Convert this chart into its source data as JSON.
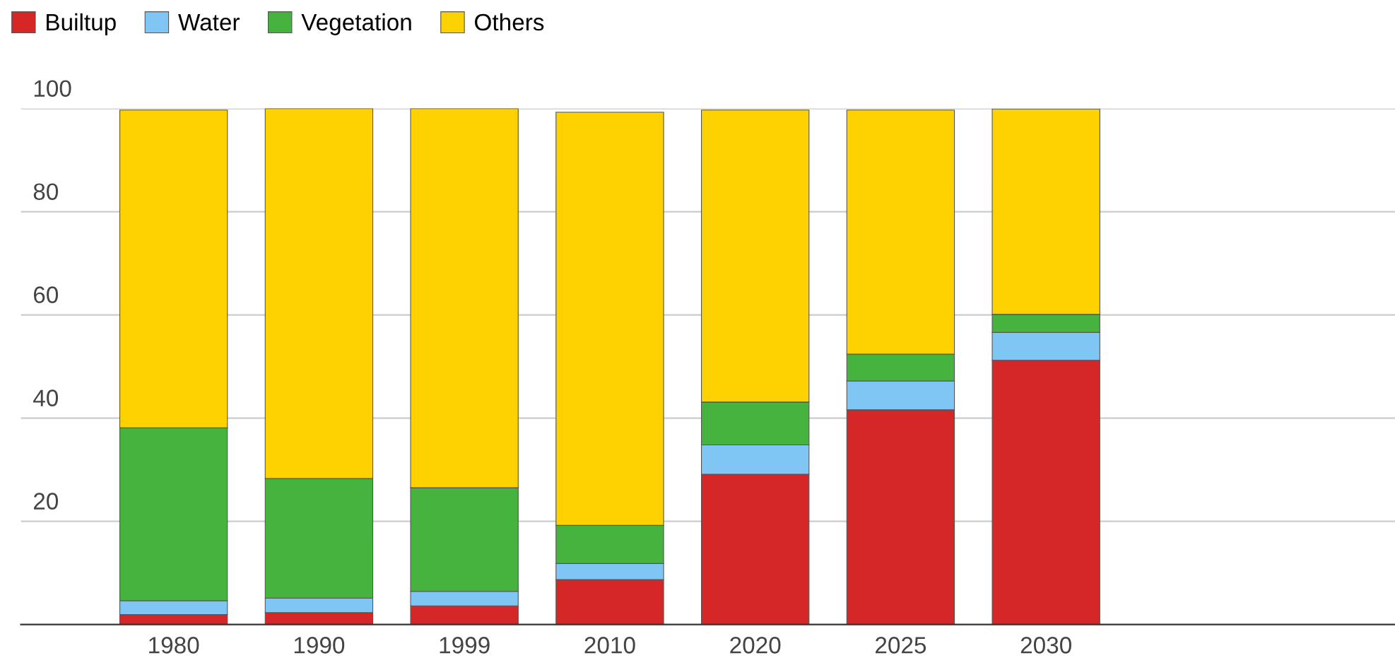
{
  "chart_data": {
    "type": "bar",
    "stacked": true,
    "categories": [
      "1980",
      "1990",
      "1999",
      "2010",
      "2020",
      "2025",
      "2030"
    ],
    "series": [
      {
        "name": "Builtup",
        "color": "#d62728",
        "values": [
          1.9,
          2.3,
          3.6,
          8.7,
          29.1,
          41.6,
          51.2
        ]
      },
      {
        "name": "Water",
        "color": "#80c6f5",
        "values": [
          2.7,
          2.8,
          2.8,
          3.1,
          5.7,
          5.6,
          5.4
        ]
      },
      {
        "name": "Vegetation",
        "color": "#46b33e",
        "values": [
          33.5,
          23.2,
          20.1,
          7.4,
          8.3,
          5.2,
          3.5
        ]
      },
      {
        "name": "Others",
        "color": "#fdd200",
        "values": [
          61.6,
          71.7,
          73.5,
          80.1,
          56.6,
          47.3,
          39.8
        ]
      }
    ],
    "ylim": [
      0,
      100
    ],
    "yticks": [
      20,
      40,
      60,
      80,
      100
    ],
    "grid": "y",
    "legend": "top left"
  }
}
